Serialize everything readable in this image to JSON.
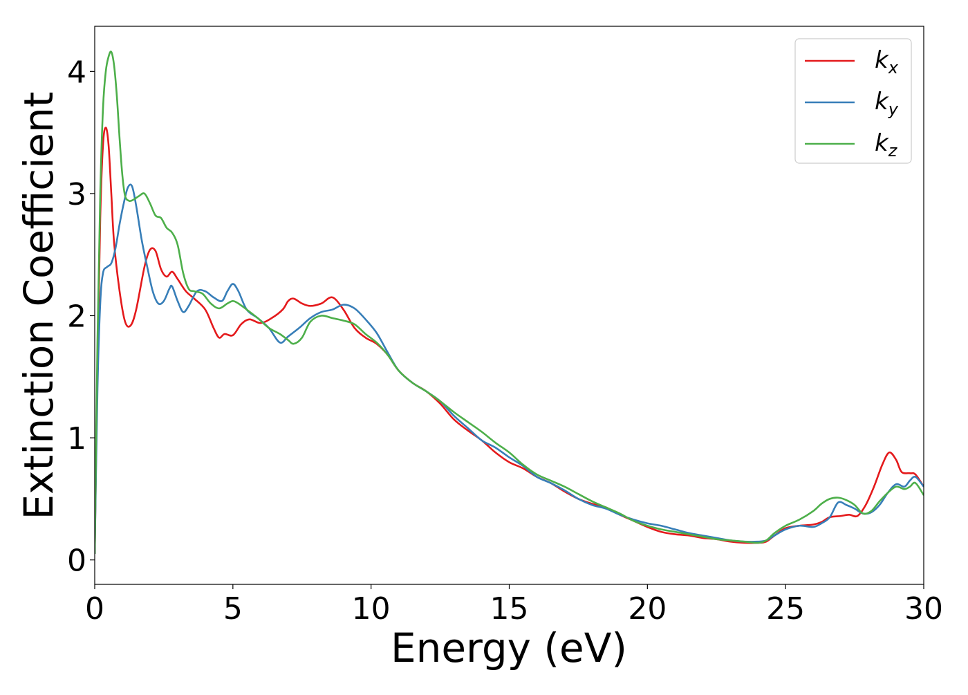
{
  "chart_data": {
    "type": "line",
    "xlabel": "Energy (eV)",
    "ylabel": "Extinction Coefficient",
    "xlim": [
      0,
      30
    ],
    "ylim": [
      -0.2,
      4.37
    ],
    "xticks": [
      0,
      5,
      10,
      15,
      20,
      25,
      30
    ],
    "yticks": [
      0,
      1,
      2,
      3,
      4
    ],
    "grid": false,
    "legend_position": "top-right",
    "series": [
      {
        "name": "k_x",
        "legend_main": "k",
        "legend_sub": "x",
        "color": "#e41a1c",
        "x": [
          0,
          0.1,
          0.2,
          0.3,
          0.4,
          0.5,
          0.6,
          0.7,
          0.9,
          1.1,
          1.3,
          1.5,
          1.8,
          2.0,
          2.2,
          2.4,
          2.6,
          2.8,
          3.0,
          3.3,
          3.6,
          4.0,
          4.3,
          4.5,
          4.7,
          5.0,
          5.3,
          5.6,
          6.0,
          6.4,
          6.8,
          7.0,
          7.2,
          7.5,
          7.8,
          8.2,
          8.6,
          9.0,
          9.4,
          9.8,
          10.2,
          10.6,
          11.0,
          11.5,
          12.0,
          12.5,
          13.0,
          13.5,
          14.0,
          14.5,
          15.0,
          15.5,
          16.0,
          16.5,
          17.0,
          17.5,
          18.0,
          18.5,
          19.0,
          19.5,
          20.0,
          20.5,
          21.0,
          21.5,
          22.0,
          22.5,
          23.0,
          23.5,
          24.0,
          24.3,
          24.6,
          25.0,
          25.5,
          26.0,
          26.3,
          26.6,
          27.0,
          27.3,
          27.6,
          27.9,
          28.2,
          28.5,
          28.75,
          29.0,
          29.2,
          29.5,
          29.7,
          30.0
        ],
        "y": [
          0.05,
          1.6,
          2.8,
          3.4,
          3.54,
          3.4,
          3.0,
          2.6,
          2.2,
          1.95,
          1.92,
          2.05,
          2.4,
          2.54,
          2.53,
          2.38,
          2.32,
          2.36,
          2.3,
          2.2,
          2.14,
          2.05,
          1.9,
          1.82,
          1.85,
          1.84,
          1.93,
          1.97,
          1.94,
          1.98,
          2.05,
          2.12,
          2.14,
          2.1,
          2.08,
          2.1,
          2.15,
          2.05,
          1.9,
          1.82,
          1.77,
          1.68,
          1.55,
          1.45,
          1.38,
          1.28,
          1.15,
          1.06,
          0.98,
          0.88,
          0.8,
          0.75,
          0.68,
          0.63,
          0.56,
          0.5,
          0.46,
          0.43,
          0.37,
          0.32,
          0.27,
          0.23,
          0.21,
          0.2,
          0.18,
          0.17,
          0.15,
          0.14,
          0.14,
          0.15,
          0.2,
          0.26,
          0.28,
          0.29,
          0.31,
          0.35,
          0.36,
          0.37,
          0.36,
          0.45,
          0.6,
          0.78,
          0.88,
          0.82,
          0.72,
          0.71,
          0.7,
          0.6
        ]
      },
      {
        "name": "k_y",
        "legend_main": "k",
        "legend_sub": "y",
        "color": "#377eb8",
        "x": [
          0,
          0.1,
          0.2,
          0.3,
          0.45,
          0.6,
          0.75,
          0.9,
          1.05,
          1.2,
          1.35,
          1.5,
          1.7,
          1.9,
          2.1,
          2.3,
          2.5,
          2.7,
          2.8,
          3.0,
          3.2,
          3.4,
          3.7,
          4.0,
          4.3,
          4.6,
          4.8,
          5.0,
          5.2,
          5.5,
          5.9,
          6.3,
          6.7,
          7.0,
          7.4,
          7.8,
          8.2,
          8.6,
          9.0,
          9.4,
          9.8,
          10.2,
          10.6,
          11.0,
          11.5,
          12.0,
          12.5,
          13.0,
          13.5,
          14.0,
          14.5,
          15.0,
          15.5,
          16.0,
          16.5,
          17.0,
          17.5,
          18.0,
          18.5,
          19.0,
          19.5,
          20.0,
          20.5,
          21.0,
          21.5,
          22.0,
          22.5,
          23.0,
          23.5,
          24.0,
          24.3,
          24.6,
          25.0,
          25.5,
          26.0,
          26.3,
          26.6,
          26.9,
          27.2,
          27.5,
          27.8,
          28.1,
          28.4,
          28.7,
          29.0,
          29.3,
          29.5,
          29.7,
          30.0
        ],
        "y": [
          0.05,
          1.4,
          2.1,
          2.35,
          2.4,
          2.43,
          2.55,
          2.75,
          2.92,
          3.05,
          3.06,
          2.9,
          2.62,
          2.4,
          2.2,
          2.1,
          2.12,
          2.22,
          2.24,
          2.12,
          2.03,
          2.08,
          2.2,
          2.2,
          2.15,
          2.12,
          2.2,
          2.26,
          2.2,
          2.05,
          1.98,
          1.9,
          1.78,
          1.83,
          1.9,
          1.98,
          2.03,
          2.05,
          2.09,
          2.06,
          1.97,
          1.86,
          1.7,
          1.55,
          1.45,
          1.38,
          1.3,
          1.18,
          1.08,
          0.98,
          0.92,
          0.84,
          0.77,
          0.68,
          0.63,
          0.57,
          0.5,
          0.45,
          0.42,
          0.37,
          0.33,
          0.3,
          0.28,
          0.25,
          0.22,
          0.2,
          0.18,
          0.16,
          0.15,
          0.15,
          0.16,
          0.2,
          0.25,
          0.28,
          0.27,
          0.3,
          0.35,
          0.47,
          0.45,
          0.42,
          0.38,
          0.39,
          0.45,
          0.55,
          0.62,
          0.6,
          0.65,
          0.68,
          0.6
        ]
      },
      {
        "name": "k_z",
        "legend_main": "k",
        "legend_sub": "z",
        "color": "#4daf4a",
        "x": [
          0,
          0.1,
          0.2,
          0.3,
          0.4,
          0.5,
          0.6,
          0.7,
          0.8,
          0.9,
          1.0,
          1.1,
          1.25,
          1.4,
          1.6,
          1.8,
          2.0,
          2.2,
          2.4,
          2.6,
          2.8,
          3.0,
          3.2,
          3.4,
          3.6,
          3.9,
          4.2,
          4.5,
          4.8,
          5.0,
          5.2,
          5.5,
          5.9,
          6.3,
          6.7,
          7.0,
          7.2,
          7.5,
          7.8,
          8.2,
          8.6,
          9.0,
          9.4,
          9.8,
          10.2,
          10.6,
          11.0,
          11.5,
          12.0,
          12.5,
          13.0,
          13.5,
          14.0,
          14.5,
          15.0,
          15.5,
          16.0,
          16.5,
          17.0,
          17.5,
          18.0,
          18.5,
          19.0,
          19.5,
          20.0,
          20.5,
          21.0,
          21.5,
          22.0,
          22.5,
          23.0,
          23.5,
          24.0,
          24.3,
          24.6,
          25.0,
          25.5,
          26.0,
          26.3,
          26.6,
          26.9,
          27.2,
          27.5,
          27.8,
          28.1,
          28.4,
          28.7,
          29.0,
          29.3,
          29.5,
          29.7,
          30.0
        ],
        "y": [
          0.05,
          1.8,
          3.0,
          3.7,
          4.0,
          4.12,
          4.16,
          4.05,
          3.8,
          3.45,
          3.15,
          2.98,
          2.94,
          2.95,
          2.98,
          3.0,
          2.92,
          2.82,
          2.8,
          2.72,
          2.68,
          2.58,
          2.35,
          2.22,
          2.2,
          2.18,
          2.1,
          2.06,
          2.1,
          2.12,
          2.1,
          2.05,
          1.98,
          1.9,
          1.85,
          1.8,
          1.77,
          1.82,
          1.95,
          2.0,
          1.98,
          1.96,
          1.93,
          1.85,
          1.78,
          1.68,
          1.55,
          1.45,
          1.38,
          1.3,
          1.21,
          1.13,
          1.05,
          0.96,
          0.88,
          0.78,
          0.7,
          0.65,
          0.6,
          0.54,
          0.48,
          0.43,
          0.38,
          0.32,
          0.28,
          0.25,
          0.23,
          0.21,
          0.19,
          0.17,
          0.16,
          0.15,
          0.14,
          0.16,
          0.22,
          0.28,
          0.33,
          0.4,
          0.46,
          0.5,
          0.51,
          0.49,
          0.45,
          0.38,
          0.4,
          0.48,
          0.55,
          0.6,
          0.58,
          0.6,
          0.63,
          0.53
        ]
      }
    ]
  }
}
